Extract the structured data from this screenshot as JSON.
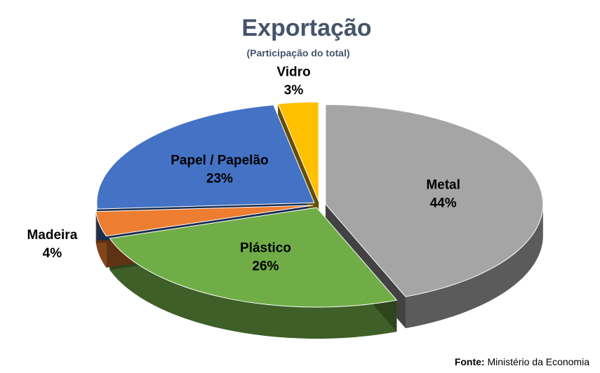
{
  "chart_data": {
    "type": "pie3d",
    "title": "Exportação",
    "subtitle": "(Participação do total)",
    "categories": [
      "Metal",
      "Plástico",
      "Madeira",
      "Papel / Papelão",
      "Vidro"
    ],
    "values": [
      44,
      26,
      4,
      23,
      3
    ],
    "value_labels": [
      "44%",
      "26%",
      "4%",
      "23%",
      "3%"
    ],
    "colors": [
      "#a5a5a5",
      "#70ad47",
      "#ed7d31",
      "#4472c4",
      "#ffc000"
    ],
    "source_label": "Fonte:",
    "source": "Ministério da Economia"
  }
}
